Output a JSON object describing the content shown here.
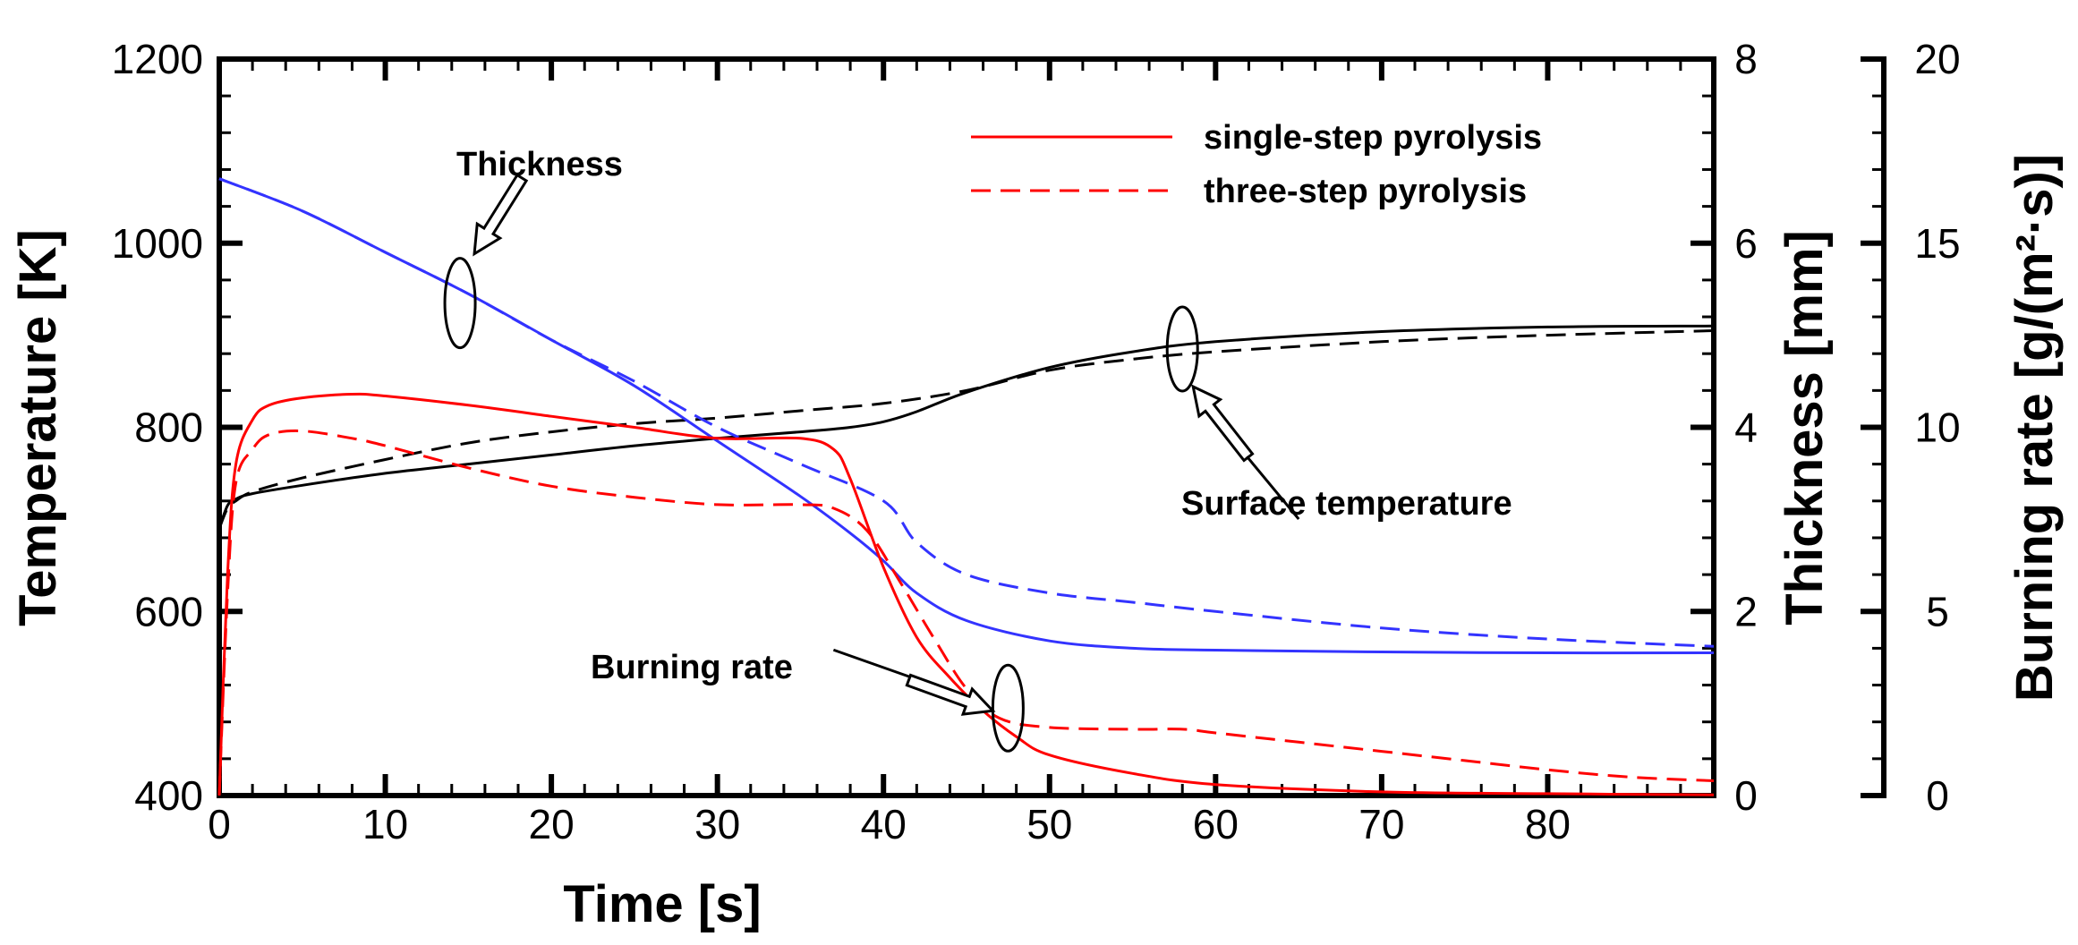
{
  "chart_data": {
    "type": "line",
    "title": "",
    "xlabel": "Time [s]",
    "ylabel_left": "Temperature [K]",
    "ylabel_right1": "Thickness [mm]",
    "ylabel_right2": "Burning rate [g/(m²·s)]",
    "xlim": [
      0,
      90
    ],
    "ylim_temperature": [
      400,
      1200
    ],
    "ylim_thickness": [
      0,
      8
    ],
    "ylim_burning_rate": [
      0,
      20
    ],
    "grid": false,
    "x_ticks": [
      "0",
      "10",
      "20",
      "30",
      "40",
      "50",
      "60",
      "70",
      "80"
    ],
    "y_ticks_temperature": [
      "400",
      "600",
      "800",
      "1000",
      "1200"
    ],
    "y_ticks_thickness": [
      "0",
      "2",
      "4",
      "6",
      "8"
    ],
    "y_ticks_burning_rate": [
      "0",
      "5",
      "10",
      "15",
      "20"
    ],
    "legend": {
      "position": "top-right",
      "entries": [
        {
          "label": "single-step pyrolysis",
          "style": "solid",
          "color": "#ff0000"
        },
        {
          "label": "three-step pyrolysis",
          "style": "dashed",
          "color": "#ff0000"
        }
      ]
    },
    "annotations": [
      {
        "text": "Thickness",
        "target_x": 14.5,
        "target_temperature": 935
      },
      {
        "text": "Surface temperature",
        "target_x": 58,
        "target_temperature": 885
      },
      {
        "text": "Burning rate",
        "target_x": 47.5,
        "target_temperature": 495
      }
    ],
    "series": [
      {
        "name": "Surface temperature (single-step)",
        "axis": "temperature",
        "color": "#000000",
        "style": "solid",
        "x": [
          0,
          0.5,
          1,
          2,
          5,
          10,
          15,
          20,
          25,
          30,
          35,
          38,
          40,
          42,
          45,
          50,
          55,
          60,
          70,
          80,
          90
        ],
        "y": [
          690,
          715,
          722,
          728,
          737,
          750,
          760,
          770,
          780,
          788,
          795,
          800,
          806,
          817,
          838,
          865,
          882,
          893,
          904,
          909,
          910
        ]
      },
      {
        "name": "Surface temperature (three-step)",
        "axis": "temperature",
        "color": "#000000",
        "style": "dashed",
        "x": [
          0,
          0.5,
          1,
          2,
          5,
          10,
          15,
          20,
          25,
          30,
          35,
          40,
          45,
          50,
          55,
          60,
          70,
          80,
          90
        ],
        "y": [
          690,
          712,
          720,
          730,
          745,
          765,
          783,
          795,
          804,
          810,
          818,
          826,
          840,
          862,
          874,
          882,
          893,
          900,
          905
        ]
      },
      {
        "name": "Thickness (single-step)",
        "axis": "thickness",
        "color": "#3333ff",
        "style": "solid",
        "x": [
          0,
          5,
          10,
          15,
          20,
          25,
          30,
          35,
          38,
          40,
          42,
          45,
          50,
          55,
          60,
          70,
          80,
          90
        ],
        "y": [
          6.7,
          6.35,
          5.9,
          5.45,
          4.95,
          4.45,
          3.85,
          3.25,
          2.85,
          2.55,
          2.2,
          1.9,
          1.68,
          1.6,
          1.58,
          1.56,
          1.55,
          1.55
        ]
      },
      {
        "name": "Thickness (three-step)",
        "axis": "thickness",
        "color": "#3333ff",
        "style": "dashed",
        "x": [
          0,
          5,
          10,
          15,
          20,
          25,
          30,
          35,
          40,
          42,
          45,
          50,
          55,
          60,
          70,
          80,
          90
        ],
        "y": [
          6.7,
          6.35,
          5.9,
          5.45,
          4.95,
          4.5,
          4.0,
          3.6,
          3.2,
          2.75,
          2.4,
          2.2,
          2.1,
          2.0,
          1.82,
          1.7,
          1.62
        ]
      },
      {
        "name": "Burning rate (single-step)",
        "axis": "burning_rate",
        "color": "#ff0000",
        "style": "solid",
        "x": [
          0,
          0.5,
          1,
          2,
          3,
          5,
          8,
          10,
          15,
          20,
          25,
          30,
          35,
          37,
          38,
          40,
          42,
          44,
          46,
          48,
          50,
          55,
          60,
          70,
          80,
          90
        ],
        "y": [
          0,
          6,
          9,
          10.2,
          10.6,
          10.8,
          10.9,
          10.85,
          10.6,
          10.3,
          10.0,
          9.7,
          9.7,
          9.4,
          8.6,
          6.2,
          4.3,
          3.2,
          2.3,
          1.6,
          1.1,
          0.6,
          0.3,
          0.1,
          0.05,
          0.02
        ]
      },
      {
        "name": "Burning rate (three-step)",
        "axis": "burning_rate",
        "color": "#ff0000",
        "style": "dashed",
        "x": [
          0,
          0.5,
          1,
          2,
          3,
          5,
          8,
          10,
          15,
          20,
          25,
          30,
          35,
          37,
          39,
          41,
          43,
          45,
          47,
          50,
          55,
          58,
          60,
          65,
          70,
          75,
          80,
          85,
          90
        ],
        "y": [
          0,
          5.5,
          8.5,
          9.4,
          9.8,
          9.9,
          9.7,
          9.5,
          8.9,
          8.4,
          8.1,
          7.9,
          7.9,
          7.8,
          7.2,
          5.8,
          4.3,
          2.9,
          2.1,
          1.85,
          1.8,
          1.8,
          1.7,
          1.45,
          1.2,
          0.95,
          0.7,
          0.5,
          0.4
        ]
      }
    ]
  }
}
